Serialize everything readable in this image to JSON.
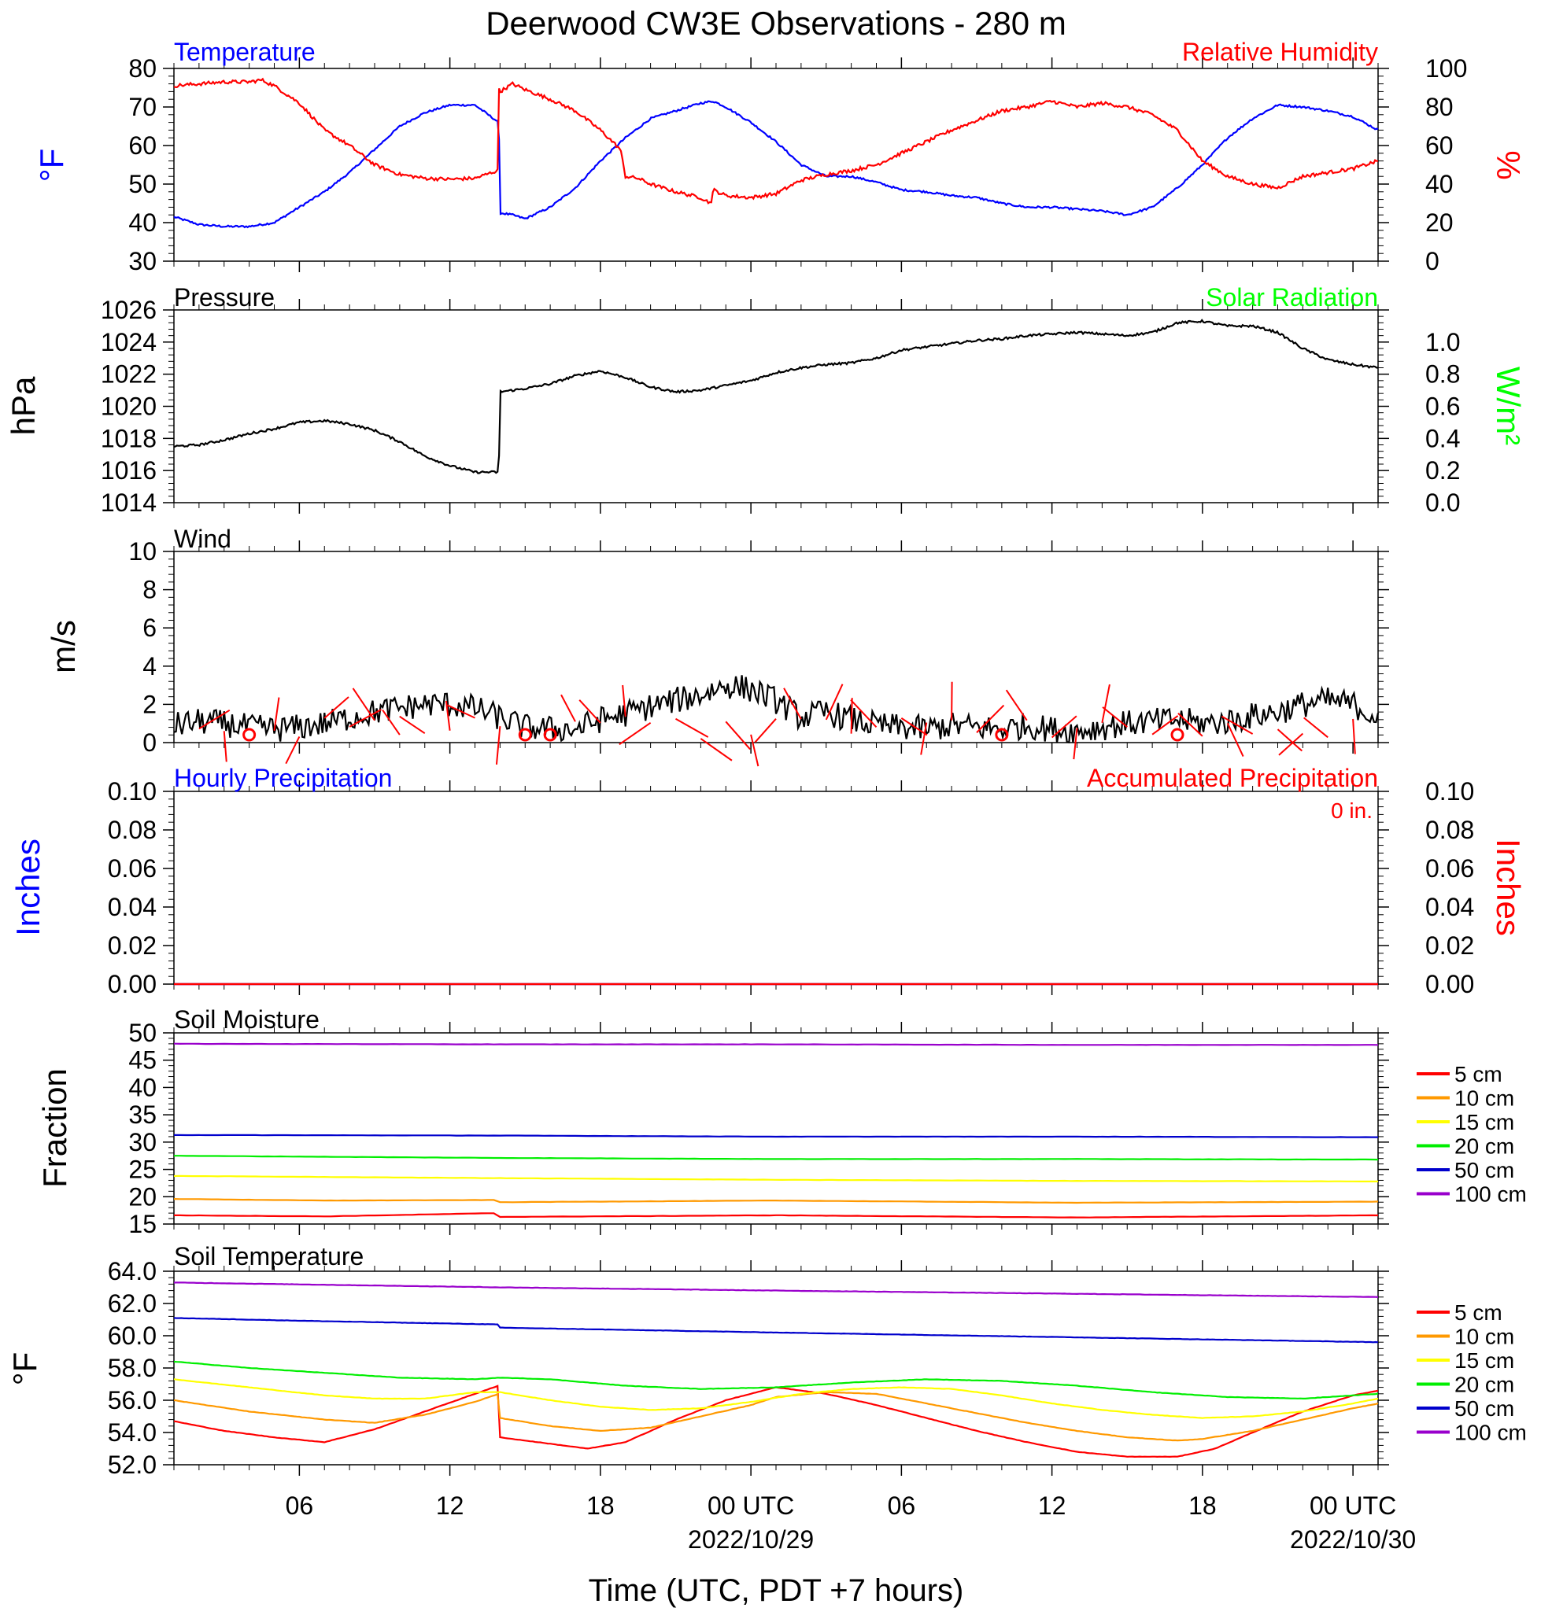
{
  "title": "Deerwood CW3E Observations - 280 m",
  "xaxis": {
    "title": "Time (UTC, PDT +7 hours)",
    "tick_hours": [
      6,
      12,
      18,
      24,
      30,
      36,
      42,
      48
    ],
    "tick_labels": [
      "06",
      "12",
      "18",
      "00 UTC",
      "06",
      "12",
      "18",
      "00 UTC"
    ],
    "date_labels": [
      {
        "hour": 24,
        "text": "2022/10/29"
      },
      {
        "hour": 48,
        "text": "2022/10/30"
      }
    ],
    "range_hours": [
      1,
      49
    ]
  },
  "legend_depths": [
    "5 cm",
    "10 cm",
    "15 cm",
    "20 cm",
    "50 cm",
    "100 cm"
  ],
  "colors": {
    "red": "#ff0000",
    "blue": "#0000ff",
    "green": "#00ff00",
    "black": "#000000",
    "orange": "#ff9900",
    "yellow": "#ffff00",
    "soil_green": "#00ee00",
    "soil_blue": "#0000cc",
    "purple": "#9900cc"
  },
  "chart_data": [
    {
      "id": "temp_rh",
      "type": "line",
      "left_title": "Temperature",
      "right_title": "Relative Humidity",
      "ylabel": "°F",
      "ylabel_right": "%",
      "ylim": [
        30,
        80
      ],
      "ylim_right": [
        0,
        100
      ],
      "yticks": [
        "30",
        "40",
        "50",
        "60",
        "70",
        "80"
      ],
      "yticks_right": [
        "0",
        "20",
        "40",
        "60",
        "80",
        "100"
      ],
      "series": [
        {
          "name": "Temperature",
          "axis": "left",
          "color": "#0000ff",
          "x": [
            1,
            2,
            3,
            4,
            5,
            6,
            7,
            8,
            9,
            10,
            11,
            12,
            13,
            13.95,
            14.0,
            14.5,
            15,
            16,
            17,
            18,
            19,
            20,
            21,
            22,
            22.5,
            23,
            24,
            25,
            26,
            27,
            28,
            29,
            30,
            31,
            32,
            33,
            34,
            35,
            36,
            37,
            38,
            39,
            40,
            41,
            42,
            43,
            44,
            45,
            46,
            47,
            48,
            49
          ],
          "y": [
            41.5,
            39.5,
            39,
            39,
            40,
            44,
            48,
            53,
            59,
            65,
            68.5,
            70.5,
            70.5,
            66,
            42.5,
            42,
            41,
            44,
            49,
            56,
            62,
            67,
            69,
            71,
            71.5,
            70,
            66,
            61,
            55,
            52,
            52,
            50.5,
            48.5,
            48,
            47,
            46.5,
            45,
            44,
            44,
            43.5,
            43,
            42,
            44,
            49,
            55,
            62,
            67,
            70.5,
            70,
            69,
            67.5,
            64
          ]
        },
        {
          "name": "Relative Humidity",
          "axis": "right",
          "color": "#ff0000",
          "x": [
            1,
            2,
            3,
            4,
            4.5,
            5,
            6,
            7,
            8,
            9,
            10,
            11,
            12,
            13,
            13.9,
            13.95,
            14.0,
            14.5,
            15,
            16,
            17,
            18,
            18.8,
            19,
            19.5,
            20,
            21,
            22,
            22.4,
            22.5,
            23,
            24,
            25,
            26,
            27,
            28,
            29,
            30,
            31,
            32,
            33,
            34,
            35,
            36,
            37,
            38,
            39,
            40,
            41,
            42,
            43,
            44,
            45,
            46,
            47,
            48,
            49
          ],
          "y": [
            91,
            92,
            93,
            93,
            94,
            91,
            82,
            68,
            60,
            50,
            45,
            43,
            42.5,
            43,
            47,
            90,
            88,
            92,
            89,
            84,
            78,
            68,
            58,
            44,
            43,
            40,
            36,
            33,
            30,
            37,
            34,
            33,
            35,
            42,
            45,
            47,
            50,
            56,
            62,
            68,
            73,
            78,
            80,
            83,
            80,
            82,
            80,
            76,
            68,
            52,
            44,
            40,
            38,
            44,
            46,
            48,
            52
          ]
        }
      ]
    },
    {
      "id": "pressure",
      "type": "line",
      "left_title": "Pressure",
      "right_title": "Solar Radiation",
      "ylabel": "hPa",
      "ylabel_right": "W/m²",
      "ylim": [
        1014,
        1026
      ],
      "ylim_right": [
        0.0,
        1.0
      ],
      "yticks": [
        "1014",
        "1016",
        "1018",
        "1020",
        "1022",
        "1024",
        "1026"
      ],
      "yticks_right": [
        "0.0",
        "0.2",
        "0.4",
        "0.6",
        "0.8",
        "1.0"
      ],
      "series": [
        {
          "name": "Pressure",
          "axis": "left",
          "color": "#000000",
          "x": [
            1,
            2,
            3,
            4,
            5,
            6,
            7,
            8,
            9,
            10,
            11,
            12,
            13,
            13.95,
            14.0,
            15,
            16,
            17,
            18,
            19,
            20,
            21,
            22,
            23,
            24,
            25,
            26,
            27,
            28,
            29,
            30,
            31,
            32,
            33,
            34,
            35,
            36,
            37,
            38,
            39,
            40,
            41,
            42,
            43,
            44,
            45,
            46,
            47,
            48,
            49
          ],
          "y": [
            1017.5,
            1017.6,
            1017.9,
            1018.3,
            1018.6,
            1019.0,
            1019.1,
            1018.9,
            1018.5,
            1017.8,
            1016.9,
            1016.3,
            1015.9,
            1015.9,
            1020.9,
            1021.1,
            1021.4,
            1021.9,
            1022.2,
            1021.8,
            1021.2,
            1020.9,
            1021.0,
            1021.3,
            1021.6,
            1022.1,
            1022.4,
            1022.6,
            1022.7,
            1023.0,
            1023.5,
            1023.7,
            1023.9,
            1024.1,
            1024.2,
            1024.4,
            1024.5,
            1024.6,
            1024.5,
            1024.4,
            1024.6,
            1025.2,
            1025.3,
            1025.0,
            1025.0,
            1024.6,
            1023.6,
            1022.9,
            1022.6,
            1022.4
          ]
        }
      ]
    },
    {
      "id": "wind",
      "type": "line",
      "left_title": "Wind",
      "ylabel": "m/s",
      "ylim": [
        0,
        10
      ],
      "yticks": [
        "0",
        "2",
        "4",
        "6",
        "8",
        "10"
      ],
      "series": [
        {
          "name": "Wind speed",
          "axis": "left",
          "color": "#000000",
          "x": [
            1,
            2,
            3,
            4,
            5,
            6,
            7,
            8,
            9,
            10,
            11,
            12,
            13,
            14,
            15,
            16,
            17,
            18,
            19,
            20,
            21,
            22,
            23,
            24,
            25,
            26,
            27,
            28,
            29,
            30,
            31,
            32,
            33,
            34,
            35,
            36,
            37,
            38,
            39,
            40,
            41,
            42,
            43,
            44,
            45,
            46,
            47,
            48,
            49
          ],
          "y": [
            0.9,
            1.1,
            1.0,
            0.8,
            0.7,
            0.8,
            1.0,
            1.3,
            1.6,
            1.8,
            2.0,
            2.0,
            1.8,
            1.3,
            0.8,
            0.7,
            0.7,
            1.2,
            1.5,
            1.9,
            2.2,
            2.5,
            3.0,
            2.8,
            2.2,
            1.3,
            1.6,
            1.2,
            0.9,
            0.8,
            0.7,
            0.9,
            0.8,
            0.7,
            0.9,
            0.7,
            0.6,
            0.8,
            1.0,
            1.1,
            1.2,
            1.0,
            1.1,
            1.4,
            1.6,
            2.0,
            2.2,
            2.0,
            1.3
          ]
        }
      ],
      "calm_hours": [
        4,
        15,
        16,
        34,
        41
      ]
    },
    {
      "id": "precip",
      "type": "line",
      "left_title": "Hourly Precipitation",
      "right_title": "Accumulated Precipitation",
      "ylabel": "Inches",
      "ylabel_right": "Inches",
      "ylim": [
        0,
        0.1
      ],
      "ylim_right": [
        0,
        0.1
      ],
      "yticks": [
        "0.00",
        "0.02",
        "0.04",
        "0.06",
        "0.08",
        "0.10"
      ],
      "yticks_right": [
        "0.00",
        "0.02",
        "0.04",
        "0.06",
        "0.08",
        "0.10"
      ],
      "annotation": "0 in.",
      "series": [
        {
          "name": "Hourly Precipitation",
          "axis": "left",
          "color": "#0000ff",
          "x": [
            1,
            49
          ],
          "y": [
            0,
            0
          ]
        },
        {
          "name": "Accumulated Precipitation",
          "axis": "right",
          "color": "#ff0000",
          "x": [
            1,
            49
          ],
          "y": [
            0,
            0
          ]
        }
      ]
    },
    {
      "id": "soil_moisture",
      "type": "line",
      "left_title": "Soil Moisture",
      "ylabel": "Fraction",
      "ylim": [
        15,
        50
      ],
      "yticks": [
        "15",
        "20",
        "25",
        "30",
        "35",
        "40",
        "45",
        "50"
      ],
      "series": [
        {
          "name": "5 cm",
          "color": "#ff0000",
          "x": [
            1,
            7,
            13.95,
            14.0,
            25,
            37,
            49
          ],
          "y": [
            16.6,
            16.4,
            17.0,
            16.3,
            16.6,
            16.2,
            16.6
          ]
        },
        {
          "name": "10 cm",
          "color": "#ff9900",
          "x": [
            1,
            7,
            13.95,
            14.0,
            25,
            37,
            49
          ],
          "y": [
            19.6,
            19.3,
            19.4,
            19.0,
            19.3,
            18.9,
            19.1
          ]
        },
        {
          "name": "15 cm",
          "color": "#ffff00",
          "x": [
            1,
            14,
            25,
            37,
            49
          ],
          "y": [
            23.8,
            23.4,
            23.1,
            22.9,
            22.8
          ]
        },
        {
          "name": "20 cm",
          "color": "#00ee00",
          "x": [
            1,
            14,
            25,
            37,
            49
          ],
          "y": [
            27.5,
            27.1,
            26.9,
            26.9,
            26.8
          ]
        },
        {
          "name": "50 cm",
          "color": "#0000cc",
          "x": [
            1,
            14,
            25,
            37,
            49
          ],
          "y": [
            31.3,
            31.2,
            31.0,
            31.0,
            30.9
          ]
        },
        {
          "name": "100 cm",
          "color": "#9900cc",
          "x": [
            1,
            14,
            25,
            37,
            49
          ],
          "y": [
            48.0,
            47.9,
            47.9,
            47.8,
            47.8
          ]
        }
      ]
    },
    {
      "id": "soil_temp",
      "type": "line",
      "left_title": "Soil Temperature",
      "ylabel": "°F",
      "ylim": [
        52,
        64
      ],
      "yticks": [
        "52.0",
        "54.0",
        "56.0",
        "58.0",
        "60.0",
        "62.0",
        "64.0"
      ],
      "series": [
        {
          "name": "5 cm",
          "color": "#ff0000",
          "x": [
            1,
            3,
            5,
            7,
            9,
            11,
            13,
            13.95,
            14.0,
            16,
            17.5,
            19,
            21,
            23,
            25,
            27,
            29,
            31,
            33,
            35,
            37,
            39,
            41,
            42.5,
            44,
            46,
            48,
            49
          ],
          "y": [
            54.7,
            54.1,
            53.7,
            53.4,
            54.2,
            55.3,
            56.4,
            56.9,
            53.7,
            53.3,
            53.0,
            53.4,
            54.8,
            56.0,
            56.8,
            56.4,
            55.7,
            54.9,
            54.1,
            53.4,
            52.8,
            52.5,
            52.5,
            53.0,
            54.0,
            55.3,
            56.3,
            56.6
          ]
        },
        {
          "name": "10 cm",
          "color": "#ff9900",
          "x": [
            1,
            4,
            7,
            9,
            11,
            13,
            13.95,
            14.0,
            16,
            18,
            20,
            22,
            24,
            25,
            27,
            29,
            31,
            33,
            35,
            37,
            39,
            41,
            42,
            44,
            46,
            48,
            49
          ],
          "y": [
            56.0,
            55.3,
            54.8,
            54.6,
            55.1,
            55.9,
            56.4,
            54.9,
            54.4,
            54.1,
            54.3,
            55.0,
            55.7,
            56.2,
            56.5,
            56.4,
            55.8,
            55.2,
            54.6,
            54.1,
            53.7,
            53.5,
            53.6,
            54.1,
            54.8,
            55.5,
            55.8
          ]
        },
        {
          "name": "15 cm",
          "color": "#ffff00",
          "x": [
            1,
            4,
            7,
            9,
            11,
            13,
            14.0,
            16,
            18,
            20,
            22,
            24,
            26,
            28,
            30,
            32,
            34,
            36,
            38,
            40,
            42,
            44,
            46,
            48,
            49
          ],
          "y": [
            57.3,
            56.8,
            56.3,
            56.1,
            56.1,
            56.5,
            56.5,
            56.0,
            55.6,
            55.4,
            55.5,
            55.9,
            56.4,
            56.7,
            56.8,
            56.7,
            56.3,
            55.8,
            55.4,
            55.1,
            54.9,
            55.0,
            55.3,
            55.8,
            56.1
          ]
        },
        {
          "name": "20 cm",
          "color": "#00ee00",
          "x": [
            1,
            4,
            7,
            10,
            13,
            14.0,
            16,
            19,
            22,
            25,
            28,
            31,
            34,
            37,
            40,
            43,
            46,
            49
          ],
          "y": [
            58.4,
            58.0,
            57.7,
            57.4,
            57.3,
            57.4,
            57.3,
            56.9,
            56.7,
            56.8,
            57.1,
            57.3,
            57.2,
            56.9,
            56.5,
            56.2,
            56.1,
            56.4
          ]
        },
        {
          "name": "50 cm",
          "color": "#0000cc",
          "x": [
            1,
            7,
            13.95,
            14.0,
            25,
            37,
            49
          ],
          "y": [
            61.1,
            60.9,
            60.7,
            60.5,
            60.2,
            59.9,
            59.6
          ]
        },
        {
          "name": "100 cm",
          "color": "#9900cc",
          "x": [
            1,
            14,
            25,
            37,
            49
          ],
          "y": [
            63.3,
            63.0,
            62.8,
            62.6,
            62.4
          ]
        }
      ]
    }
  ]
}
